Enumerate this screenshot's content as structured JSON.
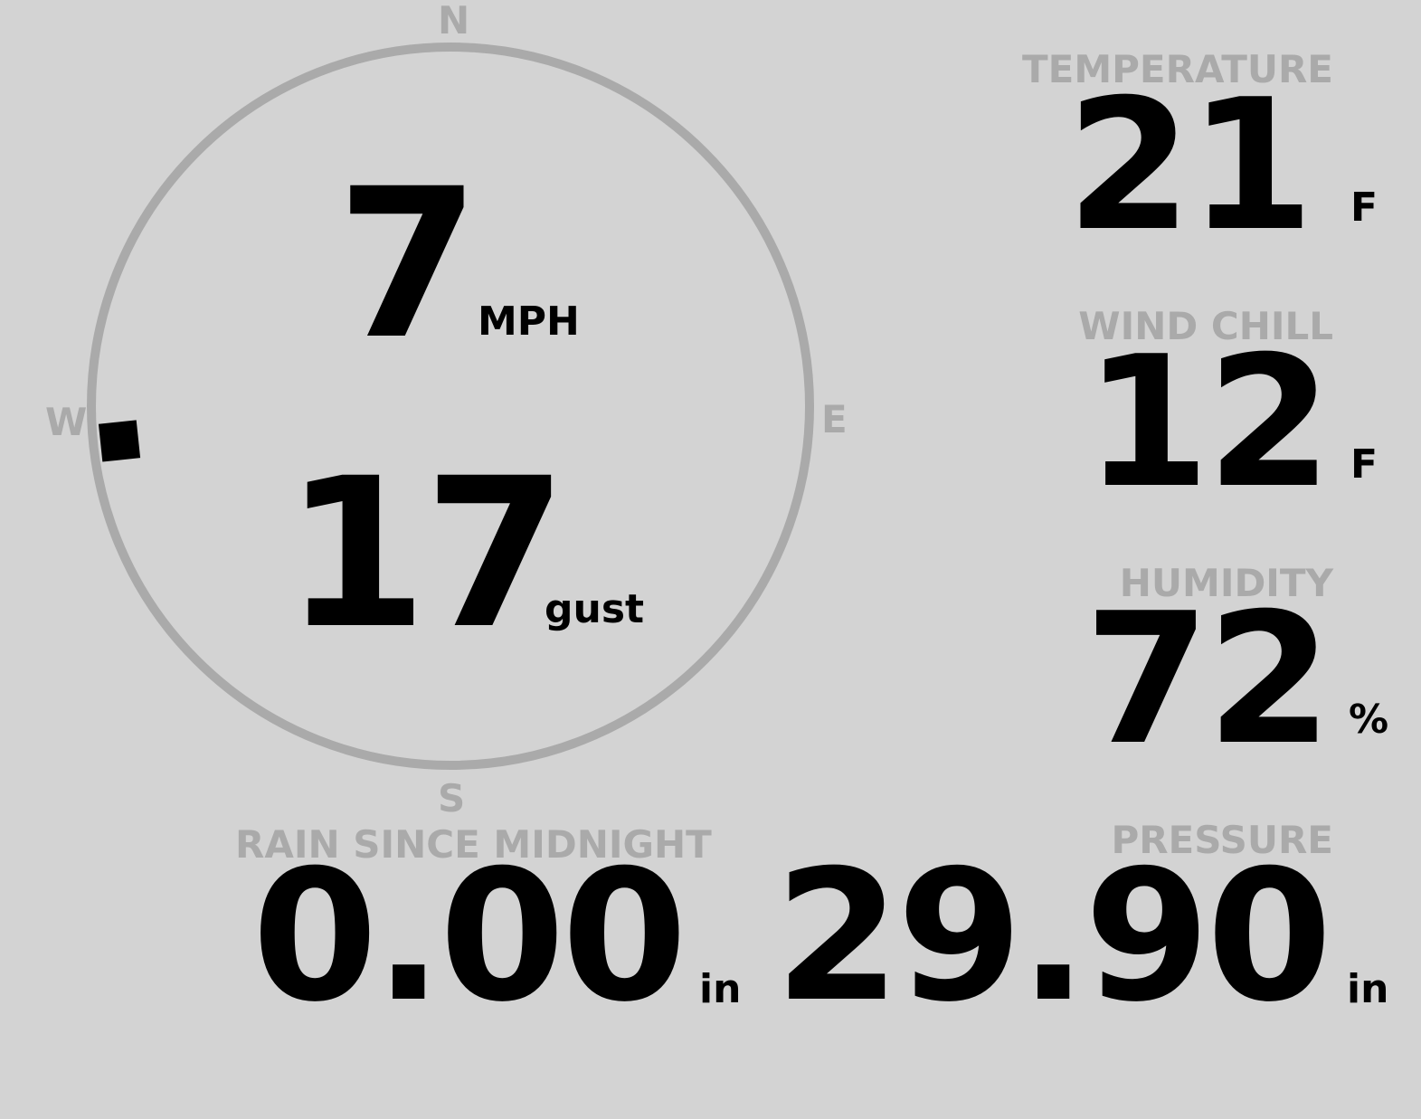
{
  "compass": {
    "north": "N",
    "south": "S",
    "east": "E",
    "west": "W",
    "wind_direction_deg": 264,
    "ring_color": "#aaaaaa",
    "marker_color": "#000000"
  },
  "wind": {
    "speed": "7",
    "speed_unit": "MPH",
    "gust": "17",
    "gust_label": "gust"
  },
  "temperature": {
    "label": "TEMPERATURE",
    "value": "21",
    "unit": "F"
  },
  "wind_chill": {
    "label": "WIND CHILL",
    "value": "12",
    "unit": "F"
  },
  "humidity": {
    "label": "HUMIDITY",
    "value": "72",
    "unit": "%"
  },
  "rain": {
    "label": "RAIN SINCE MIDNIGHT",
    "value": "0.00",
    "unit": "in"
  },
  "pressure": {
    "label": "PRESSURE",
    "value": "29.90",
    "unit": "in"
  }
}
